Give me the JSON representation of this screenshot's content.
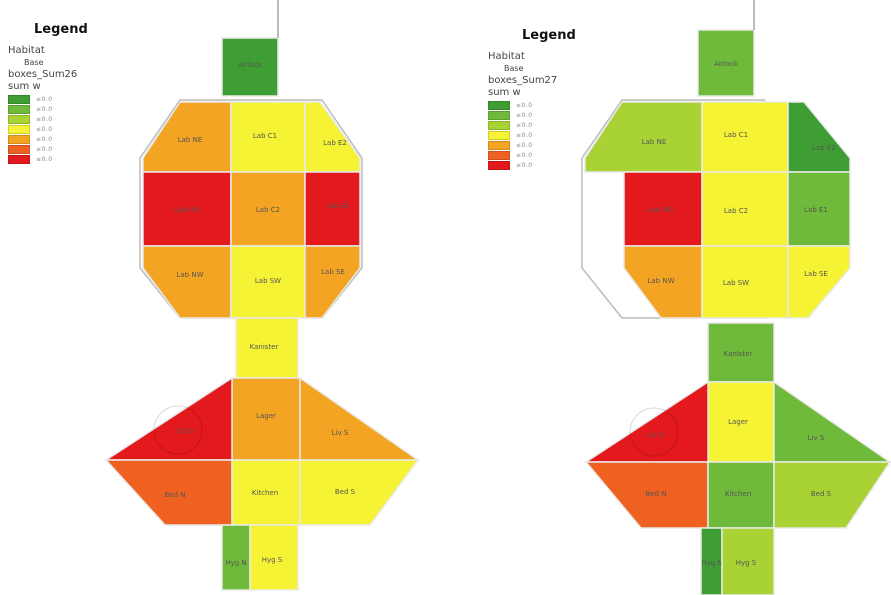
{
  "colors": {
    "c1": "#3f9e33",
    "c2": "#6fba3a",
    "c3": "#a9d234",
    "c4": "#f6f334",
    "c5": "#f4a423",
    "c6": "#ef6121",
    "c7": "#e3191d"
  },
  "left": {
    "legend": {
      "title": "Legend",
      "layer": "Habitat",
      "layer_sub": "Base",
      "field": "boxes_Sum26",
      "sub": "sum w",
      "items": [
        {
          "color_key": "c1",
          "label": "≤0.0"
        },
        {
          "color_key": "c2",
          "label": "≤0.0"
        },
        {
          "color_key": "c3",
          "label": "≤0.0"
        },
        {
          "color_key": "c4",
          "label": "≤0.0"
        },
        {
          "color_key": "c5",
          "label": "≤0.0"
        },
        {
          "color_key": "c6",
          "label": "≤0.0"
        },
        {
          "color_key": "c7",
          "label": "≤0.0"
        }
      ]
    },
    "rooms": [
      {
        "id": "airlock",
        "label": "Airlock",
        "color_key": "c1"
      },
      {
        "id": "lab-nw-top",
        "label": "Lab NE",
        "color_key": "c5"
      },
      {
        "id": "lab-c1",
        "label": "Lab C1",
        "color_key": "c4"
      },
      {
        "id": "lab-ne-top",
        "label": "Lab E2",
        "color_key": "c4"
      },
      {
        "id": "lab-w",
        "label": "Lab W1",
        "color_key": "c7"
      },
      {
        "id": "lab-c2",
        "label": "Lab C2",
        "color_key": "c5"
      },
      {
        "id": "lab-e",
        "label": "Lab E1",
        "color_key": "c7"
      },
      {
        "id": "lab-sw",
        "label": "Lab NW",
        "color_key": "c5"
      },
      {
        "id": "lab-s",
        "label": "Lab SW",
        "color_key": "c4"
      },
      {
        "id": "lab-se",
        "label": "Lab SE",
        "color_key": "c5"
      },
      {
        "id": "corridor",
        "label": "Kanister",
        "color_key": "c4"
      },
      {
        "id": "hall",
        "label": "Lager",
        "color_key": "c5"
      },
      {
        "id": "wing-w",
        "label": "Liv S",
        "color_key": "c7"
      },
      {
        "id": "wing-e",
        "label": "Liv S",
        "color_key": "c5"
      },
      {
        "id": "bed-w",
        "label": "Bed N",
        "color_key": "c6"
      },
      {
        "id": "kitchen",
        "label": "Kitchen",
        "color_key": "c4"
      },
      {
        "id": "bed-e",
        "label": "Bed S",
        "color_key": "c4"
      },
      {
        "id": "hyg",
        "label": "Hyg N",
        "color_key": "c2"
      },
      {
        "id": "hyg2",
        "label": "Hyg S",
        "color_key": "c4"
      }
    ]
  },
  "right": {
    "legend": {
      "title": "Legend",
      "layer": "Habitat",
      "layer_sub": "Base",
      "field": "boxes_Sum27",
      "sub": "sum w",
      "items": [
        {
          "color_key": "c1",
          "label": "≤0.0"
        },
        {
          "color_key": "c2",
          "label": "≤0.0"
        },
        {
          "color_key": "c3",
          "label": "≤0.0"
        },
        {
          "color_key": "c4",
          "label": "≤0.0"
        },
        {
          "color_key": "c5",
          "label": "≤0.0"
        },
        {
          "color_key": "c6",
          "label": "≤0.0"
        },
        {
          "color_key": "c7",
          "label": "≤0.0"
        }
      ]
    },
    "rooms": [
      {
        "id": "airlock",
        "label": "Airlock",
        "color_key": "c2"
      },
      {
        "id": "lab-nw-top",
        "label": "Lab NE",
        "color_key": "c3"
      },
      {
        "id": "lab-c1",
        "label": "Lab C1",
        "color_key": "c4"
      },
      {
        "id": "lab-ne-top",
        "label": "Lab E2",
        "color_key": "c1"
      },
      {
        "id": "lab-w",
        "label": "Lab W1",
        "color_key": "c7"
      },
      {
        "id": "lab-c2",
        "label": "Lab C2",
        "color_key": "c4"
      },
      {
        "id": "lab-e",
        "label": "Lab E1",
        "color_key": "c2"
      },
      {
        "id": "lab-sw",
        "label": "Lab NW",
        "color_key": "c5"
      },
      {
        "id": "lab-s",
        "label": "Lab SW",
        "color_key": "c4"
      },
      {
        "id": "lab-se",
        "label": "Lab SE",
        "color_key": "c4"
      },
      {
        "id": "corridor",
        "label": "Kanister",
        "color_key": "c2"
      },
      {
        "id": "hall",
        "label": "Lager",
        "color_key": "c4"
      },
      {
        "id": "wing-w",
        "label": "Liv S",
        "color_key": "c7"
      },
      {
        "id": "wing-e",
        "label": "Liv S",
        "color_key": "c2"
      },
      {
        "id": "bed-w",
        "label": "Bed N",
        "color_key": "c6"
      },
      {
        "id": "kitchen",
        "label": "Kitchen",
        "color_key": "c2"
      },
      {
        "id": "bed-e",
        "label": "Bed S",
        "color_key": "c3"
      },
      {
        "id": "hyg",
        "label": "Hyg N",
        "color_key": "c1"
      },
      {
        "id": "hyg2",
        "label": "Hyg S",
        "color_key": "c3"
      }
    ]
  }
}
